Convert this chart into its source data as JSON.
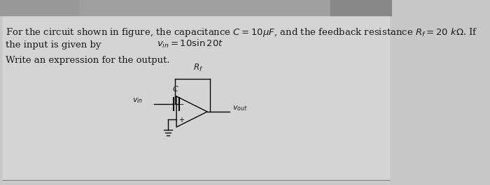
{
  "bg_color": "#c8c8c8",
  "inner_bg": "#d8d8d8",
  "top_bar_color": "#b0b0b0",
  "text_color": "#1a1a1a",
  "line1": "For the circuit shown in figure, the capacitance $C = 10\\mu F$, and the feedback resistance $R_f = 20\\ k\\Omega$. If",
  "line2": "the input is given by",
  "line3": "$v_{in} = 10 \\sin 20t$",
  "line4": "Write an expression for the output.",
  "label_C": "$C$",
  "label_Rf": "$R_f$",
  "label_vin": "$v_{in}$",
  "label_vout": "$v_{out}$",
  "figsize": [
    7.0,
    2.65
  ],
  "dpi": 100
}
